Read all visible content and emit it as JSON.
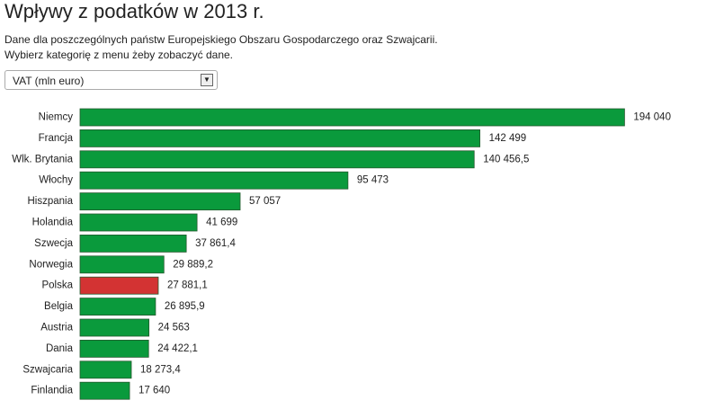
{
  "chart_data": {
    "type": "hbar",
    "title": "Wpływy z podatków w 2013 r.",
    "subtitle": [
      "Dane dla poszczególnych państw Europejskiego Obszaru Gospodarczego oraz Szwajcarii.",
      "Wybierz kategorię z menu żeby zobaczyć dane."
    ],
    "selector": "VAT (mln euro)",
    "categories": [
      "Niemcy",
      "Francja",
      "Wlk. Brytania",
      "Włochy",
      "Hiszpania",
      "Holandia",
      "Szwecja",
      "Norwegia",
      "Polska",
      "Belgia",
      "Austria",
      "Dania",
      "Szwajcaria",
      "Finlandia"
    ],
    "values": [
      194040,
      142499,
      140456.5,
      95473,
      57057,
      41699,
      37861.4,
      29889.2,
      27881.1,
      26895.9,
      24563,
      24422.1,
      18273.4,
      17640
    ],
    "value_labels": [
      "194 040",
      "142 499",
      "140 456,5",
      "95 473",
      "57 057",
      "41 699",
      "37 861,4",
      "29 889,2",
      "27 881,1",
      "26 895,9",
      "24 563",
      "24 422,1",
      "18 273,4",
      "17 640"
    ],
    "colors": [
      "#0a9a3c",
      "#0a9a3c",
      "#0a9a3c",
      "#0a9a3c",
      "#0a9a3c",
      "#0a9a3c",
      "#0a9a3c",
      "#0a9a3c",
      "#d33333",
      "#0a9a3c",
      "#0a9a3c",
      "#0a9a3c",
      "#0a9a3c",
      "#0a9a3c"
    ],
    "xlim": [
      0,
      200000
    ]
  }
}
